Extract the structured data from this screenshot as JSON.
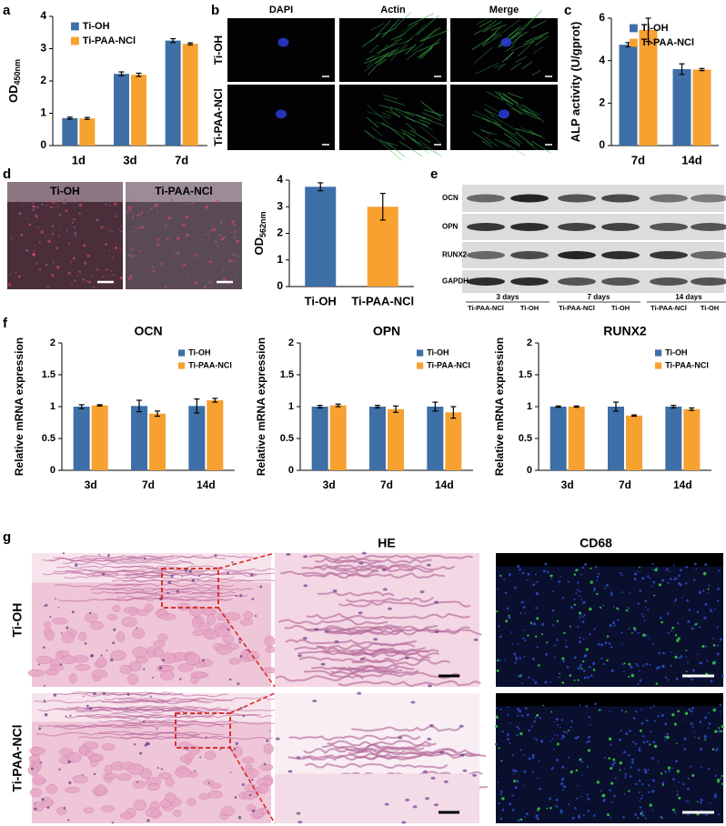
{
  "panel_labels": [
    "a",
    "b",
    "c",
    "d",
    "e",
    "f",
    "g"
  ],
  "chart_data": [
    {
      "type": "bar",
      "ylabel": "OD",
      "ylabel_sub": "450nm",
      "categories": [
        "1d",
        "3d",
        "7d"
      ],
      "series": [
        {
          "name": "Ti-OH",
          "color": "#3e6fa6",
          "values": [
            0.85,
            2.22,
            3.25
          ],
          "errors": [
            0.03,
            0.06,
            0.06
          ]
        },
        {
          "name": "Ti-PAA-NCl",
          "color": "#f7a130",
          "values": [
            0.84,
            2.19,
            3.15
          ],
          "errors": [
            0.03,
            0.05,
            0.03
          ]
        }
      ],
      "ylim": [
        0,
        4
      ],
      "yticks": [
        0,
        1,
        2,
        3,
        4
      ],
      "legend": "upper left"
    },
    {
      "type": "bar",
      "ylabel": "ALP activity (U/gprot)",
      "categories": [
        "7d",
        "14d"
      ],
      "series": [
        {
          "name": "Ti-OH",
          "color": "#3e6fa6",
          "values": [
            4.75,
            3.6
          ],
          "errors": [
            0.1,
            0.25
          ]
        },
        {
          "name": "Ti-PAA-NCl",
          "color": "#f7a130",
          "values": [
            5.45,
            3.58
          ],
          "errors": [
            0.55,
            0.05
          ]
        }
      ],
      "ylim": [
        0,
        6
      ],
      "yticks": [
        0,
        2,
        4,
        6
      ],
      "legend": "upper left"
    },
    {
      "type": "bar",
      "ylabel": "OD",
      "ylabel_sub": "562nm",
      "categories": [
        "Ti-OH",
        "Ti-PAA-NCl"
      ],
      "series": [
        {
          "colors": [
            "#3e6fa6",
            "#f7a130"
          ],
          "values": [
            3.75,
            3.0
          ],
          "errors": [
            0.15,
            0.5
          ]
        }
      ],
      "ylim": [
        0,
        4
      ],
      "yticks": [
        0,
        1,
        2,
        3,
        4
      ]
    },
    {
      "type": "bar",
      "title": "OCN",
      "ylabel": "Relative mRNA expression",
      "categories": [
        "3d",
        "7d",
        "14d"
      ],
      "series": [
        {
          "name": "Ti-OH",
          "color": "#3e6fa6",
          "values": [
            1.0,
            1.01,
            1.01
          ],
          "errors": [
            0.03,
            0.09,
            0.11
          ]
        },
        {
          "name": "Ti-PAA-NCl",
          "color": "#f7a130",
          "values": [
            1.02,
            0.89,
            1.1
          ],
          "errors": [
            0.01,
            0.04,
            0.03
          ]
        }
      ],
      "ylim": [
        0,
        2
      ],
      "yticks": [
        0,
        0.5,
        1,
        1.5,
        2
      ],
      "legend": "upper right"
    },
    {
      "type": "bar",
      "title": "OPN",
      "ylabel": "Relative mRNA expression",
      "categories": [
        "3d",
        "7d",
        "14d"
      ],
      "series": [
        {
          "name": "Ti-OH",
          "color": "#3e6fa6",
          "values": [
            1.0,
            1.0,
            1.0
          ],
          "errors": [
            0.02,
            0.02,
            0.07
          ]
        },
        {
          "name": "Ti-PAA-NCl",
          "color": "#f7a130",
          "values": [
            1.02,
            0.96,
            0.91
          ],
          "errors": [
            0.02,
            0.05,
            0.09
          ]
        }
      ],
      "ylim": [
        0,
        2
      ],
      "yticks": [
        0,
        0.5,
        1,
        1.5,
        2
      ],
      "legend": "upper right"
    },
    {
      "type": "bar",
      "title": "RUNX2",
      "ylabel": "Relative mRNA expression",
      "categories": [
        "3d",
        "7d",
        "14d"
      ],
      "series": [
        {
          "name": "Ti-OH",
          "color": "#3e6fa6",
          "values": [
            1.0,
            1.0,
            1.0
          ],
          "errors": [
            0.01,
            0.07,
            0.02
          ]
        },
        {
          "name": "Ti-PAA-NCl",
          "color": "#f7a130",
          "values": [
            1.0,
            0.86,
            0.96
          ],
          "errors": [
            0.01,
            0.01,
            0.02
          ]
        }
      ],
      "ylim": [
        0,
        2
      ],
      "yticks": [
        0,
        0.5,
        1,
        1.5,
        2
      ],
      "legend": "upper right"
    }
  ],
  "panel_b": {
    "columns": [
      "DAPI",
      "Actin",
      "Merge"
    ],
    "rows": [
      "Ti-OH",
      "Ti-PAA-NCl"
    ]
  },
  "panel_d": {
    "images": [
      "Ti-OH",
      "Ti-PAA-NCl"
    ]
  },
  "panel_e": {
    "proteins": [
      "OCN",
      "OPN",
      "RUNX2",
      "GAPDH"
    ],
    "groups": [
      "3 days",
      "7 days",
      "14 days"
    ],
    "lanes": [
      "Ti-PAA-NCl",
      "Ti-OH",
      "Ti-PAA-NCl",
      "Ti-OH",
      "Ti-PAA-NCl",
      "Ti-OH"
    ]
  },
  "panel_g": {
    "stains": [
      "HE",
      "CD68"
    ],
    "rows": [
      "Ti-OH",
      "Ti-PAA-NCl"
    ]
  }
}
